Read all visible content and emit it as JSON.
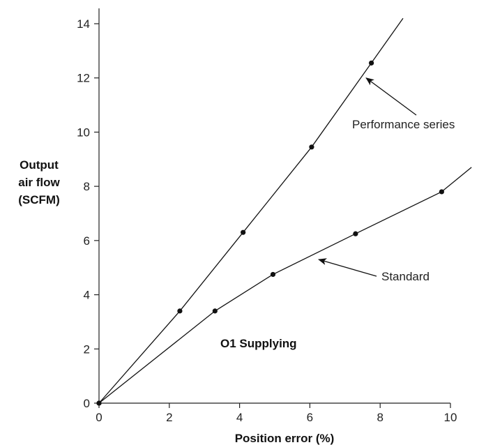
{
  "chart_data": {
    "type": "line",
    "xlabel": "Position error (%)",
    "ylabel": [
      "Output",
      "air flow",
      "(SCFM)"
    ],
    "xlim": [
      0,
      10
    ],
    "ylim": [
      0,
      14
    ],
    "xticks": [
      0,
      2,
      4,
      6,
      8,
      10
    ],
    "yticks": [
      0,
      2,
      4,
      6,
      8,
      10,
      12,
      14
    ],
    "grid": false,
    "series": [
      {
        "name": "Performance series",
        "points": [
          [
            0,
            0
          ],
          [
            2.3,
            3.4
          ],
          [
            4.1,
            6.3
          ],
          [
            6.05,
            9.45
          ],
          [
            7.75,
            12.55
          ]
        ],
        "extend_to": [
          8.65,
          14.2
        ]
      },
      {
        "name": "Standard",
        "points": [
          [
            0,
            0
          ],
          [
            3.3,
            3.4
          ],
          [
            4.95,
            4.75
          ],
          [
            7.3,
            6.25
          ],
          [
            9.75,
            7.8
          ]
        ],
        "extend_to": [
          10.6,
          8.7
        ]
      }
    ],
    "annotations": [
      {
        "text": "Performance series",
        "series": 0,
        "arrow_to": [
          7.6,
          12.0
        ]
      },
      {
        "text": "Standard",
        "series": 1,
        "arrow_to": [
          6.25,
          5.3
        ]
      },
      {
        "text": "O1 Supplying",
        "style": "bold"
      }
    ]
  }
}
